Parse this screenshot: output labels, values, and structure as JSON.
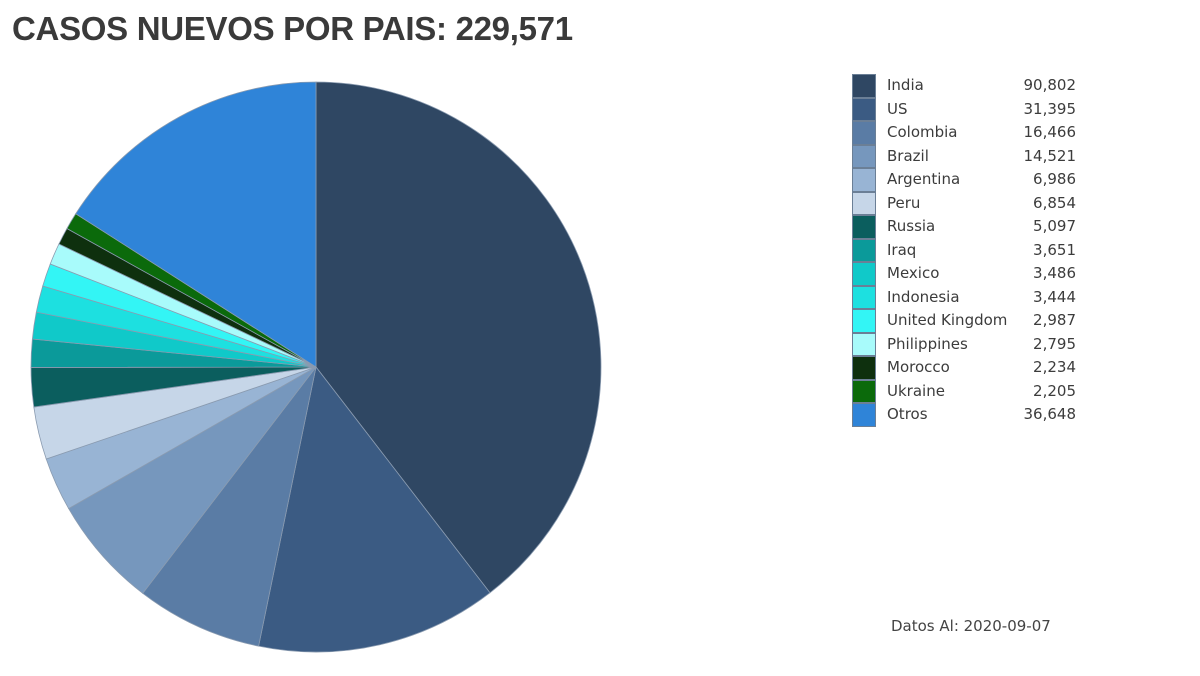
{
  "title": "CASOS NUEVOS POR PAIS: 229,571",
  "footer": "Datos Al: 2020-09-07",
  "chart_data": {
    "type": "pie",
    "title": "CASOS NUEVOS POR PAIS: 229,571",
    "total": 229571,
    "legend_position": "right",
    "slices": [
      {
        "label": "India",
        "value": 90802,
        "value_text": "90,802",
        "color": "#2f4763"
      },
      {
        "label": "US",
        "value": 31395,
        "value_text": "31,395",
        "color": "#3b5b83"
      },
      {
        "label": "Colombia",
        "value": 16466,
        "value_text": "16,466",
        "color": "#5a7ca5"
      },
      {
        "label": "Brazil",
        "value": 14521,
        "value_text": "14,521",
        "color": "#7697bd"
      },
      {
        "label": "Argentina",
        "value": 6986,
        "value_text": "6,986",
        "color": "#98b4d4"
      },
      {
        "label": "Peru",
        "value": 6854,
        "value_text": "6,854",
        "color": "#c6d6e8"
      },
      {
        "label": "Russia",
        "value": 5097,
        "value_text": "5,097",
        "color": "#0b5e5e"
      },
      {
        "label": "Iraq",
        "value": 3651,
        "value_text": "3,651",
        "color": "#0b9a9a"
      },
      {
        "label": "Mexico",
        "value": 3486,
        "value_text": "3,486",
        "color": "#10c9c9"
      },
      {
        "label": "Indonesia",
        "value": 3444,
        "value_text": "3,444",
        "color": "#1de0e0"
      },
      {
        "label": "United Kingdom",
        "value": 2987,
        "value_text": "2,987",
        "color": "#33f5f5"
      },
      {
        "label": "Philippines",
        "value": 2795,
        "value_text": "2,795",
        "color": "#a8fbfb"
      },
      {
        "label": "Morocco",
        "value": 2234,
        "value_text": "2,234",
        "color": "#0e300e"
      },
      {
        "label": "Ukraine",
        "value": 2205,
        "value_text": "2,205",
        "color": "#0b6a0b"
      },
      {
        "label": "Otros",
        "value": 36648,
        "value_text": "36,648",
        "color": "#2f84d8"
      }
    ]
  }
}
